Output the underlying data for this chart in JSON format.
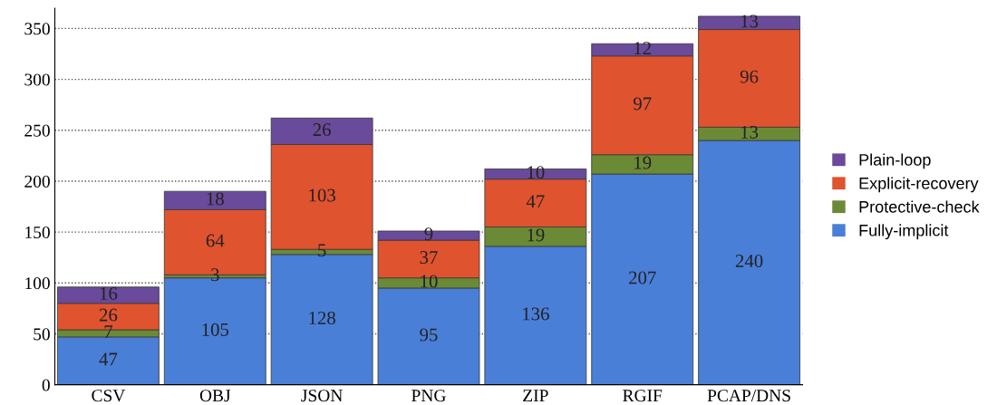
{
  "chart_data": {
    "type": "bar",
    "stacked": true,
    "categories": [
      "CSV",
      "OBJ",
      "JSON",
      "PNG",
      "ZIP",
      "RGIF",
      "PCAP/DNS"
    ],
    "series": [
      {
        "name": "Fully-implicit",
        "color": "#4a7fd8",
        "values": [
          47,
          105,
          128,
          95,
          136,
          207,
          240
        ]
      },
      {
        "name": "Protective-check",
        "color": "#6b8a35",
        "values": [
          7,
          3,
          5,
          10,
          19,
          19,
          13
        ]
      },
      {
        "name": "Explicit-recovery",
        "color": "#e0532f",
        "values": [
          26,
          64,
          103,
          37,
          47,
          97,
          96
        ]
      },
      {
        "name": "Plain-loop",
        "color": "#6a4a9a",
        "values": [
          16,
          18,
          26,
          9,
          10,
          12,
          13
        ]
      }
    ],
    "ylim": [
      0,
      370
    ],
    "yticks": [
      0,
      50,
      100,
      150,
      200,
      250,
      300,
      350
    ],
    "grid": "y",
    "legend": "right",
    "data_labels": true
  }
}
